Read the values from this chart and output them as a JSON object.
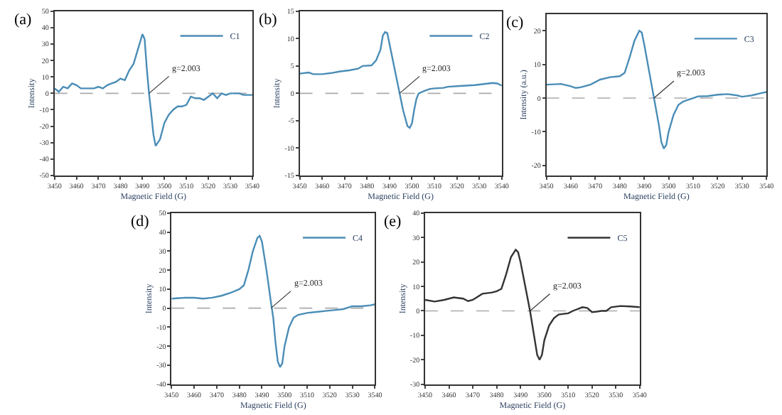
{
  "chart_data": [
    {
      "type": "line",
      "title": "(a)",
      "xlabel": "Magnetic Field (G)",
      "ylabel": "Intensity",
      "legend": "top right",
      "grid": false,
      "xlim": [
        3450,
        3540
      ],
      "xticks": [
        3450,
        3460,
        3470,
        3480,
        3490,
        3500,
        3510,
        3520,
        3530,
        3540
      ],
      "ylim": [
        -50,
        50
      ],
      "yticks": [
        -50,
        -40,
        -30,
        -20,
        -10,
        0,
        10,
        20,
        30,
        40,
        50
      ],
      "x": [
        3450,
        3452,
        3454,
        3456,
        3458,
        3460,
        3462,
        3466,
        3468,
        3470,
        3472,
        3474,
        3476,
        3478,
        3480,
        3482,
        3484,
        3486,
        3488,
        3490,
        3491,
        3492,
        3493,
        3494,
        3495,
        3496,
        3498,
        3500,
        3502,
        3504,
        3506,
        3508,
        3510,
        3512,
        3514,
        3516,
        3518,
        3520,
        3522,
        3524,
        3526,
        3528,
        3530,
        3532,
        3534,
        3536,
        3538,
        3540
      ],
      "series": [
        {
          "name": "C1",
          "color": "#4a8db7",
          "values": [
            3,
            1,
            4,
            3,
            6,
            5,
            3,
            3,
            3,
            4,
            3,
            5,
            6,
            7,
            9,
            8,
            14,
            18,
            27,
            36,
            33,
            15,
            0,
            -12,
            -25,
            -32,
            -28,
            -18,
            -13,
            -10,
            -8,
            -8,
            -7,
            -2,
            -3,
            -3,
            -4,
            -2,
            0,
            -3,
            0,
            -1,
            0,
            0,
            0,
            -1,
            -1,
            -1
          ]
        }
      ],
      "ref_lines": [
        {
          "axis": "y",
          "value": 0,
          "color": "#aaaaaa",
          "line_style": "dashed"
        }
      ],
      "annotations": [
        {
          "text": "g=2.003",
          "x": 3493,
          "y": 0
        }
      ]
    },
    {
      "type": "line",
      "title": "(b)",
      "xlabel": "Magnetic Field (G)",
      "ylabel": "Intensity",
      "legend": "top right",
      "grid": false,
      "xlim": [
        3450,
        3540
      ],
      "xticks": [
        3450,
        3460,
        3470,
        3480,
        3490,
        3500,
        3510,
        3520,
        3530,
        3540
      ],
      "ylim": [
        -15,
        15
      ],
      "yticks": [
        -15,
        -10,
        -5,
        0,
        5,
        10,
        15
      ],
      "x": [
        3450,
        3454,
        3456,
        3460,
        3464,
        3468,
        3472,
        3476,
        3478,
        3482,
        3484,
        3486,
        3487,
        3488,
        3489,
        3490,
        3492,
        3494,
        3495,
        3496,
        3498,
        3499,
        3500,
        3501,
        3502,
        3503,
        3506,
        3508,
        3510,
        3514,
        3516,
        3520,
        3524,
        3528,
        3532,
        3536,
        3538,
        3540
      ],
      "series": [
        {
          "name": "C2",
          "color": "#4a8db7",
          "values": [
            3.6,
            3.8,
            3.5,
            3.5,
            3.7,
            4,
            4.2,
            4.5,
            5,
            5.1,
            6,
            8,
            10.5,
            11.2,
            11,
            9,
            5,
            1,
            -1,
            -3,
            -6,
            -6.3,
            -5.5,
            -3,
            -1,
            0,
            0.5,
            0.8,
            0.9,
            1,
            1.2,
            1.3,
            1.4,
            1.5,
            1.7,
            1.9,
            1.8,
            1.4
          ]
        }
      ],
      "ref_lines": [
        {
          "axis": "y",
          "value": 0,
          "color": "#aaaaaa",
          "line_style": "dashed"
        }
      ],
      "annotations": [
        {
          "text": "g=2.003",
          "x": 3494.5,
          "y": 0
        }
      ]
    },
    {
      "type": "line",
      "title": "(c)",
      "xlabel": "Magnetic Field (G)",
      "ylabel": "Intensity (a.u.)",
      "legend": "top right",
      "grid": false,
      "xlim": [
        3450,
        3540
      ],
      "xticks": [
        3450,
        3460,
        3470,
        3480,
        3490,
        3500,
        3510,
        3520,
        3530,
        3540
      ],
      "ylim": [
        -23,
        25
      ],
      "yticks": [
        -20,
        -10,
        0,
        10,
        20
      ],
      "x": [
        3450,
        3456,
        3460,
        3462,
        3464,
        3468,
        3472,
        3476,
        3480,
        3482,
        3484,
        3486,
        3488,
        3489,
        3490,
        3492,
        3494,
        3496,
        3497,
        3498,
        3499,
        3500,
        3502,
        3504,
        3506,
        3508,
        3510,
        3512,
        3516,
        3520,
        3524,
        3528,
        3530,
        3534,
        3538,
        3540
      ],
      "series": [
        {
          "name": "C3",
          "color": "#4a8db7",
          "values": [
            4,
            4.2,
            3.5,
            3,
            3.2,
            4,
            5.5,
            6.2,
            6.5,
            7.5,
            12,
            17,
            20,
            19.5,
            16,
            8,
            0,
            -8,
            -13,
            -15,
            -14,
            -10,
            -5,
            -2,
            -1,
            -0.5,
            0,
            0.5,
            0.6,
            1,
            1.2,
            0.8,
            0.4,
            0.8,
            1.5,
            1.8
          ]
        }
      ],
      "ref_lines": [
        {
          "axis": "y",
          "value": 0,
          "color": "#aaaaaa",
          "line_style": "dashed"
        }
      ],
      "annotations": [
        {
          "text": "g=2.003",
          "x": 3494,
          "y": 0
        }
      ]
    },
    {
      "type": "line",
      "title": "(d)",
      "xlabel": "Magnetic Field (G)",
      "ylabel": "Intensity",
      "legend": "top right",
      "grid": false,
      "xlim": [
        3450,
        3540
      ],
      "xticks": [
        3450,
        3460,
        3470,
        3480,
        3490,
        3500,
        3510,
        3520,
        3530,
        3540
      ],
      "ylim": [
        -40,
        50
      ],
      "yticks": [
        -40,
        -30,
        -20,
        -10,
        0,
        10,
        20,
        30,
        40,
        50
      ],
      "x": [
        3450,
        3456,
        3460,
        3464,
        3468,
        3472,
        3476,
        3480,
        3482,
        3484,
        3486,
        3488,
        3489,
        3490,
        3492,
        3494,
        3495,
        3496,
        3497,
        3498,
        3499,
        3500,
        3502,
        3504,
        3506,
        3510,
        3514,
        3518,
        3522,
        3526,
        3530,
        3534,
        3538,
        3540
      ],
      "series": [
        {
          "name": "C4",
          "color": "#4a8db7",
          "values": [
            5,
            5.5,
            5.5,
            5,
            5.5,
            6.5,
            8,
            10,
            12,
            20,
            30,
            37,
            38,
            35,
            20,
            3,
            -5,
            -18,
            -28,
            -31,
            -29,
            -20,
            -10,
            -5,
            -3.5,
            -2.5,
            -2,
            -1.5,
            -1,
            -0.5,
            1,
            1,
            1.5,
            2
          ]
        }
      ],
      "ref_lines": [
        {
          "axis": "y",
          "value": 0,
          "color": "#aaaaaa",
          "line_style": "dashed"
        }
      ],
      "annotations": [
        {
          "text": "g=2.003",
          "x": 3494,
          "y": 0
        }
      ]
    },
    {
      "type": "line",
      "title": "(e)",
      "xlabel": "Magnetic Field (G)",
      "ylabel": "Intensity",
      "legend": "top right",
      "grid": false,
      "xlim": [
        3450,
        3540
      ],
      "xticks": [
        3450,
        3460,
        3470,
        3480,
        3490,
        3500,
        3510,
        3520,
        3530,
        3540
      ],
      "ylim": [
        -30,
        40
      ],
      "yticks": [
        -30,
        -20,
        -10,
        0,
        10,
        20,
        30,
        40
      ],
      "x": [
        3450,
        3454,
        3458,
        3462,
        3466,
        3468,
        3470,
        3474,
        3478,
        3480,
        3482,
        3484,
        3486,
        3488,
        3489,
        3490,
        3492,
        3494,
        3496,
        3497,
        3498,
        3499,
        3500,
        3502,
        3504,
        3506,
        3510,
        3512,
        3516,
        3518,
        3520,
        3522,
        3524,
        3526,
        3528,
        3532,
        3536,
        3540
      ],
      "series": [
        {
          "name": "C5",
          "color": "#333333",
          "values": [
            4.5,
            3.8,
            4.5,
            5.5,
            5,
            4,
            4.5,
            7,
            7.5,
            8,
            9,
            15,
            22,
            25,
            24,
            20,
            10,
            0,
            -12,
            -18,
            -20,
            -18,
            -12,
            -6,
            -3,
            -1.5,
            -1,
            0,
            1.5,
            1.2,
            -0.5,
            -0.3,
            0,
            0,
            1.5,
            2,
            1.8,
            1.5
          ]
        }
      ],
      "ref_lines": [
        {
          "axis": "y",
          "value": 0,
          "color": "#aaaaaa",
          "line_style": "dashed"
        }
      ],
      "annotations": [
        {
          "text": "g=2.003",
          "x": 3494,
          "y": 0
        }
      ]
    }
  ]
}
